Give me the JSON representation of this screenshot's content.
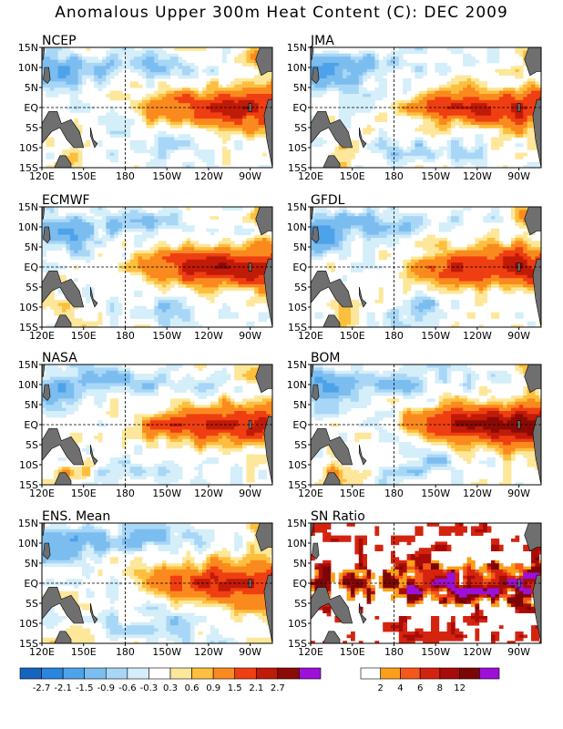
{
  "title": "Anomalous Upper 300m Heat Content (C): DEC 2009",
  "panels": [
    {
      "name": "NCEP",
      "kind": "anomaly"
    },
    {
      "name": "JMA",
      "kind": "anomaly"
    },
    {
      "name": "ECMWF",
      "kind": "anomaly"
    },
    {
      "name": "GFDL",
      "kind": "anomaly"
    },
    {
      "name": "NASA",
      "kind": "anomaly"
    },
    {
      "name": "BOM",
      "kind": "anomaly"
    },
    {
      "name": "ENS. Mean",
      "kind": "anomaly"
    },
    {
      "name": "SN Ratio",
      "kind": "ratio"
    }
  ],
  "lat_labels": [
    "15N",
    "10N",
    "5N",
    "EQ",
    "5S",
    "10S",
    "15S"
  ],
  "lon_labels": [
    "120E",
    "150E",
    "180",
    "150W",
    "120W",
    "90W"
  ],
  "anomaly_colorbar": {
    "labels": [
      "-2.7",
      "-2.1",
      "-1.5",
      "-0.9",
      "-0.6",
      "-0.3",
      "0.3",
      "0.6",
      "0.9",
      "1.5",
      "2.1",
      "2.7"
    ],
    "colors": [
      "#1565c0",
      "#2a85de",
      "#4ea2ea",
      "#7cbdf0",
      "#a8d6f6",
      "#d4eefa",
      "#ffffff",
      "#fde79a",
      "#fdbf3e",
      "#fb8a1e",
      "#ef3f12",
      "#c01a08",
      "#8c0a06",
      "#9c10d8"
    ]
  },
  "sn_colorbar": {
    "labels": [
      "2",
      "4",
      "6",
      "8",
      "12"
    ],
    "colors": [
      "#ffffff",
      "#fb9f1a",
      "#f4581a",
      "#d42410",
      "#a80c08",
      "#7c0606",
      "#9c10d8"
    ]
  },
  "colors": {
    "land": "#6f6f6f",
    "frame": "#000000"
  }
}
